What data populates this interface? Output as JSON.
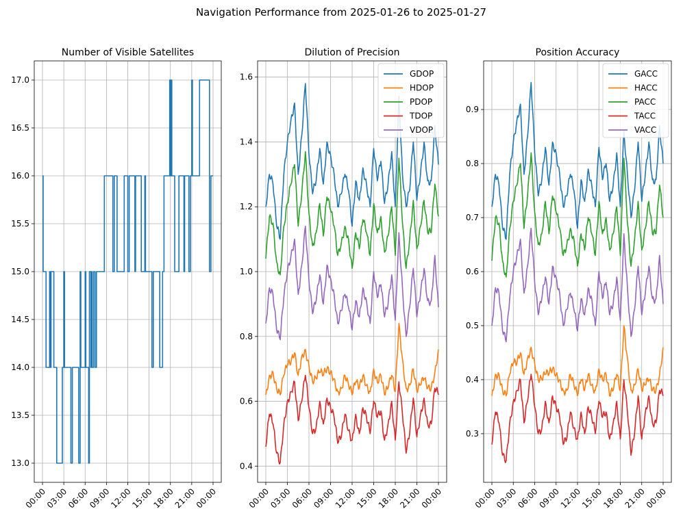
{
  "figure": {
    "suptitle": "Navigation Performance from 2025-01-26 to 2025-01-27",
    "background": "#ffffff"
  },
  "chart_data": [
    {
      "type": "line",
      "title": "Number of Visible Satellites",
      "xlabel": "",
      "ylabel": "",
      "x_range": [
        "2025-01-26 00:00",
        "2025-01-27 00:00"
      ],
      "x_ticks": [
        "00:00",
        "03:00",
        "06:00",
        "09:00",
        "12:00",
        "15:00",
        "18:00",
        "21:00",
        "00:00"
      ],
      "ylim": [
        12.8,
        17.2
      ],
      "y_ticks": [
        "13.0",
        "13.5",
        "14.0",
        "14.5",
        "15.0",
        "15.5",
        "16.0",
        "16.5",
        "17.0"
      ],
      "grid": true,
      "step": true,
      "series": [
        {
          "color": "#1f77b4",
          "points": [
            [
              "00:00",
              16
            ],
            [
              "00:06",
              15
            ],
            [
              "00:30",
              14
            ],
            [
              "01:00",
              15
            ],
            [
              "01:06",
              14
            ],
            [
              "01:12",
              15
            ],
            [
              "01:36",
              14
            ],
            [
              "02:00",
              13
            ],
            [
              "02:48",
              14
            ],
            [
              "03:00",
              15
            ],
            [
              "03:06",
              14
            ],
            [
              "04:00",
              13
            ],
            [
              "04:12",
              14
            ],
            [
              "05:06",
              13
            ],
            [
              "05:18",
              15
            ],
            [
              "05:24",
              14
            ],
            [
              "06:00",
              15
            ],
            [
              "06:06",
              14
            ],
            [
              "06:30",
              13
            ],
            [
              "06:36",
              15
            ],
            [
              "06:48",
              14
            ],
            [
              "06:54",
              15
            ],
            [
              "07:00",
              14
            ],
            [
              "07:12",
              15
            ],
            [
              "07:24",
              14
            ],
            [
              "07:36",
              15
            ],
            [
              "08:42",
              16
            ],
            [
              "09:54",
              15
            ],
            [
              "10:06",
              16
            ],
            [
              "10:30",
              15
            ],
            [
              "11:30",
              16
            ],
            [
              "12:00",
              15
            ],
            [
              "12:12",
              16
            ],
            [
              "13:00",
              15
            ],
            [
              "13:06",
              16
            ],
            [
              "13:54",
              15
            ],
            [
              "14:24",
              16
            ],
            [
              "14:30",
              15
            ],
            [
              "15:24",
              14
            ],
            [
              "15:36",
              15
            ],
            [
              "16:00",
              15
            ],
            [
              "16:30",
              14
            ],
            [
              "16:54",
              15
            ],
            [
              "17:06",
              16
            ],
            [
              "17:54",
              17
            ],
            [
              "18:00",
              16
            ],
            [
              "18:06",
              17
            ],
            [
              "18:12",
              16
            ],
            [
              "18:36",
              15
            ],
            [
              "19:12",
              16
            ],
            [
              "19:54",
              15
            ],
            [
              "20:00",
              16
            ],
            [
              "20:36",
              15
            ],
            [
              "20:48",
              16
            ],
            [
              "21:00",
              17
            ],
            [
              "21:06",
              16
            ],
            [
              "22:06",
              17
            ],
            [
              "23:30",
              15
            ],
            [
              "23:42",
              16
            ],
            [
              "24:00",
              16
            ]
          ]
        }
      ]
    },
    {
      "type": "line",
      "title": "Dilution of Precision",
      "xlabel": "",
      "ylabel": "",
      "x_range": [
        "2025-01-26 00:00",
        "2025-01-27 00:00"
      ],
      "x_ticks": [
        "00:00",
        "03:00",
        "06:00",
        "09:00",
        "12:00",
        "15:00",
        "18:00",
        "21:00",
        "00:00"
      ],
      "ylim": [
        0.35,
        1.65
      ],
      "y_ticks": [
        "0.4",
        "0.6",
        "0.8",
        "1.0",
        "1.2",
        "1.4",
        "1.6"
      ],
      "grid": true,
      "legend": "top-right",
      "series": [
        {
          "name": "GDOP",
          "color": "#1f77b4",
          "values": [
            1.2,
            1.3,
            1.27,
            1.14,
            1.1,
            1.3,
            1.4,
            1.47,
            1.52,
            1.3,
            1.42,
            1.58,
            1.36,
            1.24,
            1.28,
            1.38,
            1.27,
            1.4,
            1.36,
            1.3,
            1.2,
            1.24,
            1.3,
            1.25,
            1.14,
            1.28,
            1.22,
            1.32,
            1.27,
            1.2,
            1.38,
            1.28,
            1.34,
            1.21,
            1.27,
            1.37,
            1.2,
            1.54,
            1.3,
            1.2,
            1.25,
            1.4,
            1.22,
            1.3,
            1.4,
            1.28,
            1.28,
            1.45,
            1.33
          ]
        },
        {
          "name": "HDOP",
          "color": "#ff7f0e",
          "values": [
            0.62,
            0.68,
            0.69,
            0.64,
            0.62,
            0.68,
            0.71,
            0.72,
            0.75,
            0.68,
            0.74,
            0.76,
            0.71,
            0.66,
            0.67,
            0.69,
            0.68,
            0.7,
            0.69,
            0.67,
            0.63,
            0.64,
            0.68,
            0.65,
            0.62,
            0.66,
            0.64,
            0.68,
            0.65,
            0.63,
            0.7,
            0.66,
            0.68,
            0.62,
            0.64,
            0.68,
            0.63,
            0.84,
            0.73,
            0.64,
            0.65,
            0.7,
            0.63,
            0.65,
            0.67,
            0.64,
            0.64,
            0.69,
            0.76
          ]
        },
        {
          "name": "PDOP",
          "color": "#2ca02c",
          "values": [
            1.04,
            1.17,
            1.15,
            1.03,
            0.99,
            1.14,
            1.21,
            1.27,
            1.33,
            1.14,
            1.24,
            1.37,
            1.18,
            1.08,
            1.12,
            1.21,
            1.11,
            1.23,
            1.19,
            1.14,
            1.05,
            1.09,
            1.14,
            1.1,
            1.01,
            1.12,
            1.07,
            1.16,
            1.12,
            1.05,
            1.21,
            1.12,
            1.17,
            1.06,
            1.11,
            1.2,
            1.05,
            1.35,
            1.15,
            1.01,
            1.1,
            1.22,
            1.07,
            1.14,
            1.22,
            1.12,
            1.12,
            1.27,
            1.17
          ]
        },
        {
          "name": "TDOP",
          "color": "#d62728",
          "values": [
            0.46,
            0.56,
            0.53,
            0.44,
            0.41,
            0.53,
            0.6,
            0.63,
            0.66,
            0.54,
            0.6,
            0.68,
            0.58,
            0.5,
            0.52,
            0.6,
            0.53,
            0.61,
            0.58,
            0.55,
            0.47,
            0.49,
            0.56,
            0.51,
            0.48,
            0.56,
            0.5,
            0.58,
            0.55,
            0.5,
            0.6,
            0.55,
            0.57,
            0.48,
            0.53,
            0.6,
            0.48,
            0.66,
            0.56,
            0.44,
            0.5,
            0.61,
            0.49,
            0.56,
            0.61,
            0.53,
            0.53,
            0.64,
            0.62
          ]
        },
        {
          "name": "VDOP",
          "color": "#9467bd",
          "values": [
            0.84,
            0.95,
            0.93,
            0.82,
            0.79,
            0.92,
            1.0,
            1.05,
            1.1,
            0.93,
            1.02,
            1.14,
            0.97,
            0.87,
            0.91,
            0.99,
            0.9,
            1.02,
            0.98,
            0.93,
            0.84,
            0.88,
            0.93,
            0.89,
            0.82,
            0.91,
            0.86,
            0.95,
            0.91,
            0.84,
            1.0,
            0.92,
            0.96,
            0.86,
            0.9,
            0.99,
            0.85,
            1.12,
            0.95,
            0.8,
            0.89,
            1.01,
            0.86,
            0.93,
            1.01,
            0.91,
            0.91,
            1.05,
            0.89
          ]
        }
      ]
    },
    {
      "type": "line",
      "title": "Position Accuracy",
      "xlabel": "",
      "ylabel": "",
      "x_range": [
        "2025-01-26 00:00",
        "2025-01-27 00:00"
      ],
      "x_ticks": [
        "00:00",
        "03:00",
        "06:00",
        "09:00",
        "12:00",
        "15:00",
        "18:00",
        "21:00",
        "00:00"
      ],
      "ylim": [
        0.21,
        0.99
      ],
      "y_ticks": [
        "0.3",
        "0.4",
        "0.5",
        "0.6",
        "0.7",
        "0.8",
        "0.9"
      ],
      "grid": true,
      "legend": "top-right",
      "series": [
        {
          "name": "GACC",
          "color": "#1f77b4",
          "values": [
            0.72,
            0.78,
            0.76,
            0.68,
            0.66,
            0.78,
            0.84,
            0.88,
            0.91,
            0.78,
            0.85,
            0.95,
            0.82,
            0.74,
            0.77,
            0.83,
            0.76,
            0.84,
            0.82,
            0.78,
            0.72,
            0.74,
            0.78,
            0.75,
            0.68,
            0.77,
            0.73,
            0.79,
            0.76,
            0.72,
            0.83,
            0.77,
            0.8,
            0.73,
            0.76,
            0.82,
            0.72,
            0.86,
            0.78,
            0.7,
            0.75,
            0.84,
            0.73,
            0.78,
            0.84,
            0.77,
            0.77,
            0.87,
            0.8
          ]
        },
        {
          "name": "HACC",
          "color": "#ff7f0e",
          "values": [
            0.37,
            0.41,
            0.41,
            0.38,
            0.37,
            0.41,
            0.43,
            0.43,
            0.45,
            0.41,
            0.44,
            0.46,
            0.43,
            0.4,
            0.4,
            0.41,
            0.41,
            0.42,
            0.41,
            0.4,
            0.38,
            0.38,
            0.41,
            0.39,
            0.37,
            0.4,
            0.38,
            0.41,
            0.39,
            0.38,
            0.42,
            0.4,
            0.41,
            0.37,
            0.38,
            0.41,
            0.38,
            0.5,
            0.44,
            0.38,
            0.39,
            0.42,
            0.38,
            0.39,
            0.4,
            0.38,
            0.38,
            0.41,
            0.46
          ]
        },
        {
          "name": "PACC",
          "color": "#2ca02c",
          "values": [
            0.62,
            0.7,
            0.69,
            0.62,
            0.59,
            0.68,
            0.73,
            0.76,
            0.8,
            0.68,
            0.74,
            0.82,
            0.71,
            0.65,
            0.67,
            0.73,
            0.67,
            0.74,
            0.71,
            0.68,
            0.63,
            0.65,
            0.68,
            0.66,
            0.61,
            0.67,
            0.64,
            0.7,
            0.67,
            0.63,
            0.73,
            0.67,
            0.7,
            0.64,
            0.67,
            0.72,
            0.63,
            0.81,
            0.69,
            0.61,
            0.66,
            0.73,
            0.64,
            0.68,
            0.73,
            0.67,
            0.67,
            0.76,
            0.7
          ]
        },
        {
          "name": "TACC",
          "color": "#d62728",
          "values": [
            0.28,
            0.34,
            0.32,
            0.26,
            0.25,
            0.32,
            0.36,
            0.38,
            0.4,
            0.32,
            0.36,
            0.41,
            0.35,
            0.3,
            0.31,
            0.36,
            0.32,
            0.37,
            0.35,
            0.33,
            0.28,
            0.29,
            0.34,
            0.31,
            0.29,
            0.34,
            0.3,
            0.35,
            0.33,
            0.3,
            0.36,
            0.33,
            0.34,
            0.29,
            0.32,
            0.36,
            0.29,
            0.4,
            0.34,
            0.26,
            0.3,
            0.37,
            0.29,
            0.34,
            0.37,
            0.32,
            0.32,
            0.38,
            0.37
          ]
        },
        {
          "name": "VACC",
          "color": "#9467bd",
          "values": [
            0.5,
            0.57,
            0.56,
            0.49,
            0.47,
            0.55,
            0.6,
            0.63,
            0.66,
            0.56,
            0.61,
            0.68,
            0.58,
            0.52,
            0.55,
            0.59,
            0.54,
            0.61,
            0.59,
            0.56,
            0.5,
            0.53,
            0.56,
            0.53,
            0.49,
            0.55,
            0.52,
            0.57,
            0.55,
            0.5,
            0.6,
            0.55,
            0.58,
            0.52,
            0.54,
            0.59,
            0.51,
            0.67,
            0.57,
            0.48,
            0.53,
            0.61,
            0.52,
            0.56,
            0.61,
            0.55,
            0.55,
            0.63,
            0.54
          ]
        }
      ]
    }
  ]
}
